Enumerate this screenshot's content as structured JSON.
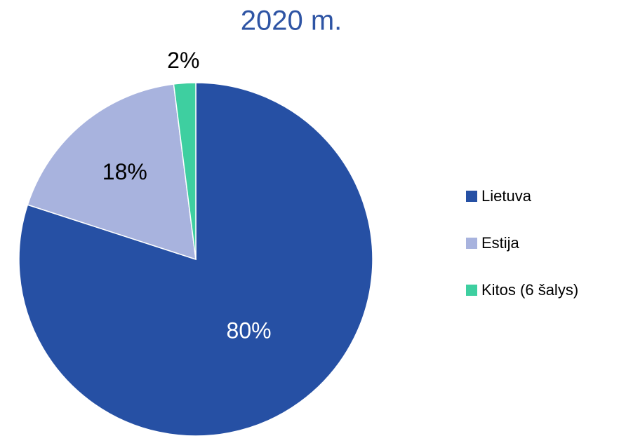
{
  "chart_data": {
    "type": "pie",
    "title": "2020 m.",
    "categories": [
      "Lietuva",
      "Estija",
      "Kitos (6 šalys)"
    ],
    "values": [
      80,
      18,
      2
    ],
    "value_labels": [
      "80%",
      "18%",
      "2%"
    ],
    "colors": [
      "#2650a4",
      "#a8b3de",
      "#3ecfa0"
    ],
    "legend": "right"
  }
}
